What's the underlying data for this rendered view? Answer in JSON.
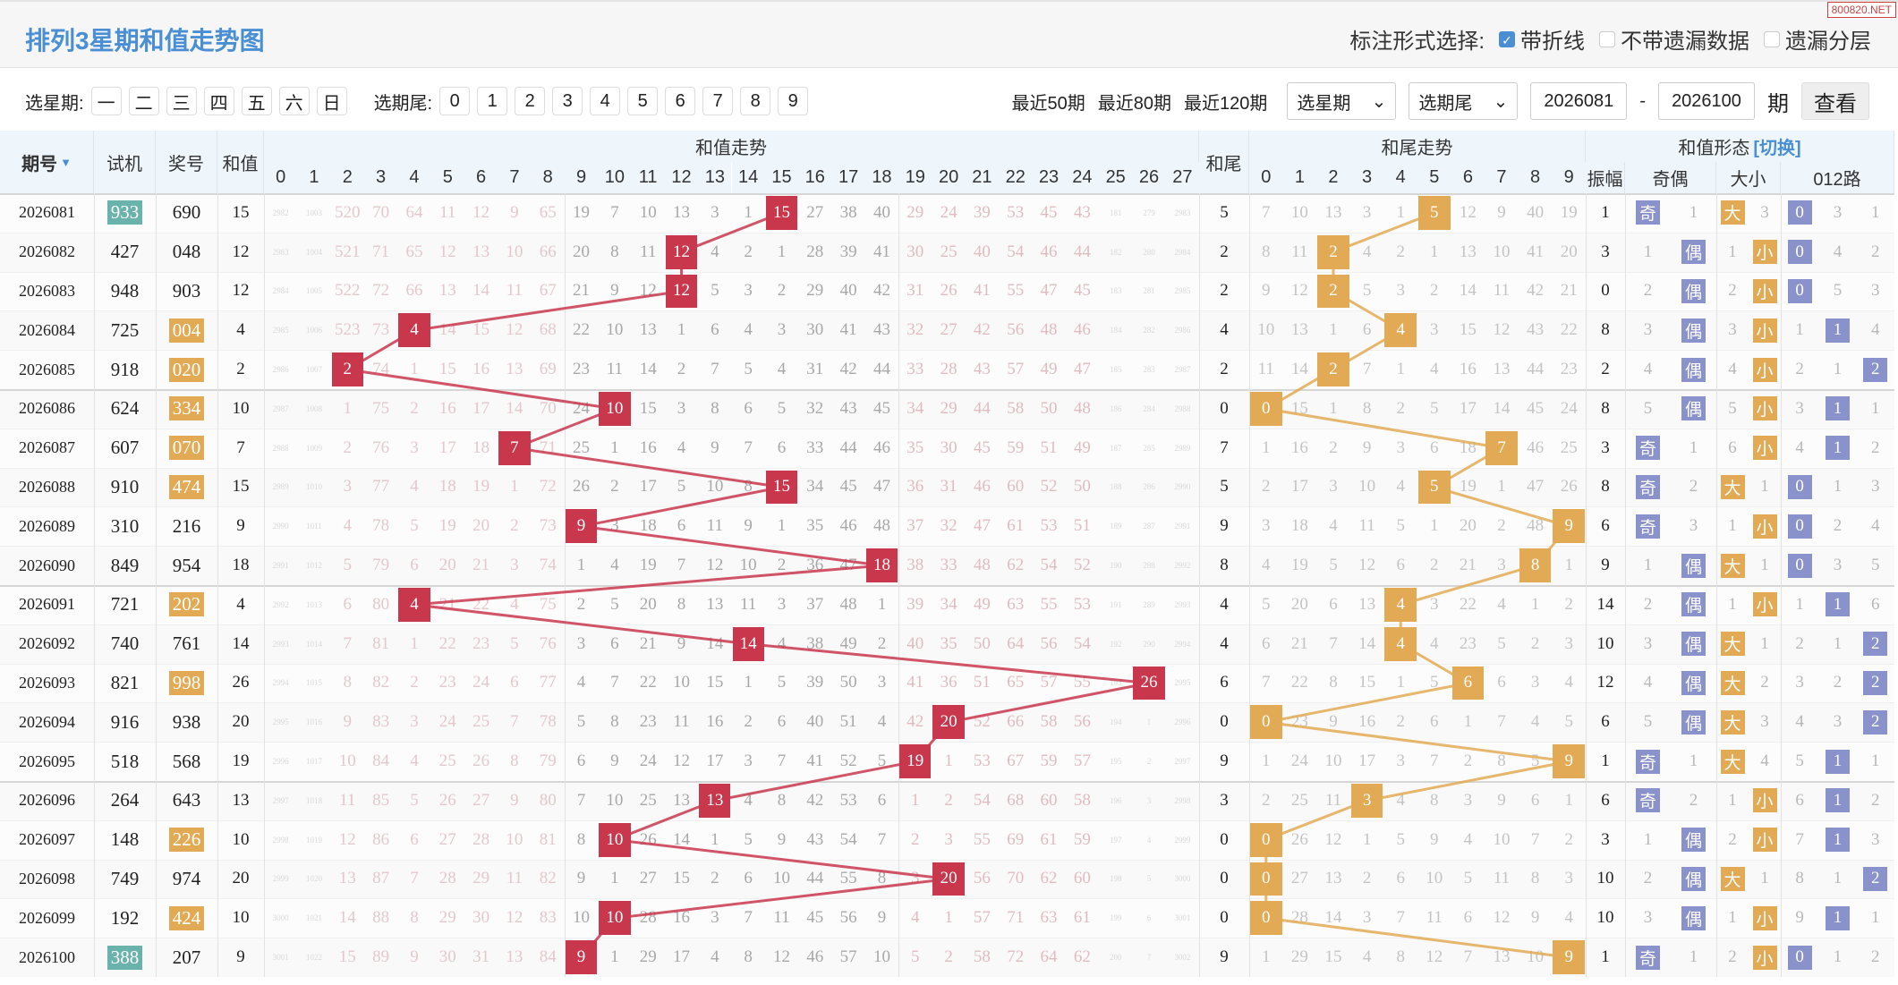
{
  "header": {
    "title": "排列3星期和值走势图",
    "mark_label": "标注形式选择:",
    "options": [
      {
        "label": "带折线",
        "checked": true
      },
      {
        "label": "不带遗漏数据",
        "checked": false
      },
      {
        "label": "遗漏分层",
        "checked": false
      }
    ],
    "watermark": "800820.NET"
  },
  "filter": {
    "week_label": "选星期:",
    "weekdays": [
      "一",
      "二",
      "三",
      "四",
      "五",
      "六",
      "日"
    ],
    "tail_label": "选期尾:",
    "tails": [
      "0",
      "1",
      "2",
      "3",
      "4",
      "5",
      "6",
      "7",
      "8",
      "9"
    ],
    "recent": [
      "最近50期",
      "最近80期",
      "最近120期"
    ],
    "week_select": "选星期",
    "tail_select": "选期尾",
    "from": "2026081",
    "dash": "-",
    "to": "2026100",
    "unit": "期",
    "view_button": "查看"
  },
  "columns": {
    "issue": "期号",
    "trial": "试机",
    "prize": "奖号",
    "sum": "和值",
    "sum_trend": "和值走势",
    "sum_digits": [
      "0",
      "1",
      "2",
      "3",
      "4",
      "5",
      "6",
      "7",
      "8",
      "9",
      "10",
      "11",
      "12",
      "13",
      "14",
      "15",
      "16",
      "17",
      "18",
      "19",
      "20",
      "21",
      "22",
      "23",
      "24",
      "25",
      "26",
      "27"
    ],
    "tail": "和尾",
    "tail_trend": "和尾走势",
    "tail_digits": [
      "0",
      "1",
      "2",
      "3",
      "4",
      "5",
      "6",
      "7",
      "8",
      "9"
    ],
    "form": "和值形态",
    "switch": "[切换]",
    "amp": "振幅",
    "oe": "奇偶",
    "bs": "大小",
    "r012": "012路"
  },
  "colors": {
    "title": "#4a8fd4",
    "sum_hit": "#c9374d",
    "tail_hit": "#e3aa55",
    "badge_blue": "#8a92cb",
    "trial_hl": "#6ab3ad",
    "prize_hl": "#e3aa55"
  },
  "rows": [
    {
      "issue": "2026081",
      "trial": "933",
      "trial_hl": true,
      "prize": "690",
      "prize_hl": false,
      "sum": 15,
      "sum_omit": [
        2982,
        1003,
        520,
        70,
        64,
        11,
        12,
        9,
        65,
        19,
        7,
        10,
        13,
        3,
        1,
        null,
        27,
        38,
        40,
        29,
        24,
        39,
        53,
        45,
        43,
        181,
        279,
        2983
      ],
      "tail": 5,
      "tail_omit": [
        7,
        10,
        13,
        3,
        1,
        null,
        12,
        9,
        40,
        19
      ],
      "amp": 1,
      "oe": [
        "奇",
        1
      ],
      "bs": [
        "大",
        3
      ],
      "r012": [
        0,
        3,
        1
      ]
    },
    {
      "issue": "2026082",
      "trial": "427",
      "trial_hl": false,
      "prize": "048",
      "prize_hl": false,
      "sum": 12,
      "sum_omit": [
        2983,
        1004,
        521,
        71,
        65,
        12,
        13,
        10,
        66,
        20,
        8,
        11,
        null,
        4,
        2,
        1,
        28,
        39,
        41,
        30,
        25,
        40,
        54,
        46,
        44,
        182,
        280,
        2984
      ],
      "tail": 2,
      "tail_omit": [
        8,
        11,
        null,
        4,
        2,
        1,
        13,
        10,
        41,
        20
      ],
      "amp": 3,
      "oe": [
        1,
        "偶"
      ],
      "bs": [
        1,
        "小"
      ],
      "r012": [
        0,
        4,
        2
      ]
    },
    {
      "issue": "2026083",
      "trial": "948",
      "trial_hl": false,
      "prize": "903",
      "prize_hl": false,
      "sum": 12,
      "sum_omit": [
        2984,
        1005,
        522,
        72,
        66,
        13,
        14,
        11,
        67,
        21,
        9,
        12,
        null,
        5,
        3,
        2,
        29,
        40,
        42,
        31,
        26,
        41,
        55,
        47,
        45,
        183,
        281,
        2985
      ],
      "tail": 2,
      "tail_omit": [
        9,
        12,
        null,
        5,
        3,
        2,
        14,
        11,
        42,
        21
      ],
      "amp": 0,
      "oe": [
        2,
        "偶"
      ],
      "bs": [
        2,
        "小"
      ],
      "r012": [
        0,
        5,
        3
      ]
    },
    {
      "issue": "2026084",
      "trial": "725",
      "trial_hl": false,
      "prize": "004",
      "prize_hl": true,
      "sum": 4,
      "sum_omit": [
        2985,
        1006,
        523,
        73,
        null,
        14,
        15,
        12,
        68,
        22,
        10,
        13,
        1,
        6,
        4,
        3,
        30,
        41,
        43,
        32,
        27,
        42,
        56,
        48,
        46,
        184,
        282,
        2986
      ],
      "tail": 4,
      "tail_omit": [
        10,
        13,
        1,
        6,
        null,
        3,
        15,
        12,
        43,
        22
      ],
      "amp": 8,
      "oe": [
        3,
        "偶"
      ],
      "bs": [
        3,
        "小"
      ],
      "r012": [
        1,
        1,
        4
      ]
    },
    {
      "issue": "2026085",
      "trial": "918",
      "trial_hl": false,
      "prize": "020",
      "prize_hl": true,
      "sum": 2,
      "sum_omit": [
        2986,
        1007,
        null,
        74,
        1,
        15,
        16,
        13,
        69,
        23,
        11,
        14,
        2,
        7,
        5,
        4,
        31,
        42,
        44,
        33,
        28,
        43,
        57,
        49,
        47,
        185,
        283,
        2987
      ],
      "tail": 2,
      "tail_omit": [
        11,
        14,
        null,
        7,
        1,
        4,
        16,
        13,
        44,
        23
      ],
      "amp": 2,
      "oe": [
        4,
        "偶"
      ],
      "bs": [
        4,
        "小"
      ],
      "r012": [
        2,
        1,
        2
      ]
    },
    {
      "issue": "2026086",
      "trial": "624",
      "trial_hl": false,
      "prize": "334",
      "prize_hl": true,
      "sum": 10,
      "sum_omit": [
        2987,
        1008,
        1,
        75,
        2,
        16,
        17,
        14,
        70,
        24,
        null,
        15,
        3,
        8,
        6,
        5,
        32,
        43,
        45,
        34,
        29,
        44,
        58,
        50,
        48,
        186,
        284,
        2988
      ],
      "tail": 0,
      "tail_omit": [
        null,
        15,
        1,
        8,
        2,
        5,
        17,
        14,
        45,
        24
      ],
      "amp": 8,
      "oe": [
        5,
        "偶"
      ],
      "bs": [
        5,
        "小"
      ],
      "r012": [
        3,
        1,
        1
      ]
    },
    {
      "issue": "2026087",
      "trial": "607",
      "trial_hl": false,
      "prize": "070",
      "prize_hl": true,
      "sum": 7,
      "sum_omit": [
        2988,
        1009,
        2,
        76,
        3,
        17,
        18,
        null,
        71,
        25,
        1,
        16,
        4,
        9,
        7,
        6,
        33,
        44,
        46,
        35,
        30,
        45,
        59,
        51,
        49,
        187,
        285,
        2989
      ],
      "tail": 7,
      "tail_omit": [
        1,
        16,
        2,
        9,
        3,
        6,
        18,
        null,
        46,
        25
      ],
      "amp": 3,
      "oe": [
        "奇",
        1
      ],
      "bs": [
        6,
        "小"
      ],
      "r012": [
        4,
        1,
        2
      ]
    },
    {
      "issue": "2026088",
      "trial": "910",
      "trial_hl": false,
      "prize": "474",
      "prize_hl": true,
      "sum": 15,
      "sum_omit": [
        2989,
        1010,
        3,
        77,
        4,
        18,
        19,
        1,
        72,
        26,
        2,
        17,
        5,
        10,
        8,
        null,
        34,
        45,
        47,
        36,
        31,
        46,
        60,
        52,
        50,
        188,
        286,
        2990
      ],
      "tail": 5,
      "tail_omit": [
        2,
        17,
        3,
        10,
        4,
        null,
        19,
        1,
        47,
        26
      ],
      "amp": 8,
      "oe": [
        "奇",
        2
      ],
      "bs": [
        "大",
        1
      ],
      "r012": [
        0,
        1,
        3
      ]
    },
    {
      "issue": "2026089",
      "trial": "310",
      "trial_hl": false,
      "prize": "216",
      "prize_hl": false,
      "sum": 9,
      "sum_omit": [
        2990,
        1011,
        4,
        78,
        5,
        19,
        20,
        2,
        73,
        null,
        3,
        18,
        6,
        11,
        9,
        1,
        35,
        46,
        48,
        37,
        32,
        47,
        61,
        53,
        51,
        189,
        287,
        2991
      ],
      "tail": 9,
      "tail_omit": [
        3,
        18,
        4,
        11,
        5,
        1,
        20,
        2,
        48,
        null
      ],
      "amp": 6,
      "oe": [
        "奇",
        3
      ],
      "bs": [
        1,
        "小"
      ],
      "r012": [
        0,
        2,
        4
      ]
    },
    {
      "issue": "2026090",
      "trial": "849",
      "trial_hl": false,
      "prize": "954",
      "prize_hl": false,
      "sum": 18,
      "sum_omit": [
        2991,
        1012,
        5,
        79,
        6,
        20,
        21,
        3,
        74,
        1,
        4,
        19,
        7,
        12,
        10,
        2,
        36,
        47,
        null,
        38,
        33,
        48,
        62,
        54,
        52,
        190,
        288,
        2992
      ],
      "tail": 8,
      "tail_omit": [
        4,
        19,
        5,
        12,
        6,
        2,
        21,
        3,
        null,
        1
      ],
      "amp": 9,
      "oe": [
        1,
        "偶"
      ],
      "bs": [
        "大",
        1
      ],
      "r012": [
        0,
        3,
        5
      ]
    },
    {
      "issue": "2026091",
      "trial": "721",
      "trial_hl": false,
      "prize": "202",
      "prize_hl": true,
      "sum": 4,
      "sum_omit": [
        2992,
        1013,
        6,
        80,
        null,
        21,
        22,
        4,
        75,
        2,
        5,
        20,
        8,
        13,
        11,
        3,
        37,
        48,
        1,
        39,
        34,
        49,
        63,
        55,
        53,
        191,
        289,
        2993
      ],
      "tail": 4,
      "tail_omit": [
        5,
        20,
        6,
        13,
        null,
        3,
        22,
        4,
        1,
        2
      ],
      "amp": 14,
      "oe": [
        2,
        "偶"
      ],
      "bs": [
        1,
        "小"
      ],
      "r012": [
        1,
        1,
        6
      ]
    },
    {
      "issue": "2026092",
      "trial": "740",
      "trial_hl": false,
      "prize": "761",
      "prize_hl": false,
      "sum": 14,
      "sum_omit": [
        2993,
        1014,
        7,
        81,
        1,
        22,
        23,
        5,
        76,
        3,
        6,
        21,
        9,
        14,
        null,
        4,
        38,
        49,
        2,
        40,
        35,
        50,
        64,
        56,
        54,
        192,
        290,
        2994
      ],
      "tail": 4,
      "tail_omit": [
        6,
        21,
        7,
        14,
        null,
        4,
        23,
        5,
        2,
        3
      ],
      "amp": 10,
      "oe": [
        3,
        "偶"
      ],
      "bs": [
        "大",
        1
      ],
      "r012": [
        2,
        1,
        2
      ]
    },
    {
      "issue": "2026093",
      "trial": "821",
      "trial_hl": false,
      "prize": "998",
      "prize_hl": true,
      "sum": 26,
      "sum_omit": [
        2994,
        1015,
        8,
        82,
        2,
        23,
        24,
        6,
        77,
        4,
        7,
        22,
        10,
        15,
        1,
        5,
        39,
        50,
        3,
        41,
        36,
        51,
        65,
        57,
        55,
        193,
        null,
        2995
      ],
      "tail": 6,
      "tail_omit": [
        7,
        22,
        8,
        15,
        1,
        5,
        null,
        6,
        3,
        4
      ],
      "amp": 12,
      "oe": [
        4,
        "偶"
      ],
      "bs": [
        "大",
        2
      ],
      "r012": [
        3,
        2,
        2
      ]
    },
    {
      "issue": "2026094",
      "trial": "916",
      "trial_hl": false,
      "prize": "938",
      "prize_hl": false,
      "sum": 20,
      "sum_omit": [
        2995,
        1016,
        9,
        83,
        3,
        24,
        25,
        7,
        78,
        5,
        8,
        23,
        11,
        16,
        2,
        6,
        40,
        51,
        4,
        42,
        null,
        52,
        66,
        58,
        56,
        194,
        1,
        2996
      ],
      "tail": 0,
      "tail_omit": [
        null,
        23,
        9,
        16,
        2,
        6,
        1,
        7,
        4,
        5
      ],
      "amp": 6,
      "oe": [
        5,
        "偶"
      ],
      "bs": [
        "大",
        3
      ],
      "r012": [
        4,
        3,
        2
      ]
    },
    {
      "issue": "2026095",
      "trial": "518",
      "trial_hl": false,
      "prize": "568",
      "prize_hl": false,
      "sum": 19,
      "sum_omit": [
        2996,
        1017,
        10,
        84,
        4,
        25,
        26,
        8,
        79,
        6,
        9,
        24,
        12,
        17,
        3,
        7,
        41,
        52,
        5,
        null,
        1,
        53,
        67,
        59,
        57,
        195,
        2,
        2997
      ],
      "tail": 9,
      "tail_omit": [
        1,
        24,
        10,
        17,
        3,
        7,
        2,
        8,
        5,
        null
      ],
      "amp": 1,
      "oe": [
        "奇",
        1
      ],
      "bs": [
        "大",
        4
      ],
      "r012": [
        5,
        1,
        1
      ]
    },
    {
      "issue": "2026096",
      "trial": "264",
      "trial_hl": false,
      "prize": "643",
      "prize_hl": false,
      "sum": 13,
      "sum_omit": [
        2997,
        1018,
        11,
        85,
        5,
        26,
        27,
        9,
        80,
        7,
        10,
        25,
        13,
        null,
        4,
        8,
        42,
        53,
        6,
        1,
        2,
        54,
        68,
        60,
        58,
        196,
        3,
        2998
      ],
      "tail": 3,
      "tail_omit": [
        2,
        25,
        11,
        null,
        4,
        8,
        3,
        9,
        6,
        1
      ],
      "amp": 6,
      "oe": [
        "奇",
        2
      ],
      "bs": [
        1,
        "小"
      ],
      "r012": [
        6,
        1,
        2
      ]
    },
    {
      "issue": "2026097",
      "trial": "148",
      "trial_hl": false,
      "prize": "226",
      "prize_hl": true,
      "sum": 10,
      "sum_omit": [
        2998,
        1019,
        12,
        86,
        6,
        27,
        28,
        10,
        81,
        8,
        null,
        26,
        14,
        1,
        5,
        9,
        43,
        54,
        7,
        2,
        3,
        55,
        69,
        61,
        59,
        197,
        4,
        2999
      ],
      "tail": 0,
      "tail_omit": [
        null,
        26,
        12,
        1,
        5,
        9,
        4,
        10,
        7,
        2
      ],
      "amp": 3,
      "oe": [
        1,
        "偶"
      ],
      "bs": [
        2,
        "小"
      ],
      "r012": [
        7,
        1,
        3
      ]
    },
    {
      "issue": "2026098",
      "trial": "749",
      "trial_hl": false,
      "prize": "974",
      "prize_hl": false,
      "sum": 20,
      "sum_omit": [
        2999,
        1020,
        13,
        87,
        7,
        28,
        29,
        11,
        82,
        9,
        1,
        27,
        15,
        2,
        6,
        10,
        44,
        55,
        8,
        3,
        null,
        56,
        70,
        62,
        60,
        198,
        5,
        3000
      ],
      "tail": 0,
      "tail_omit": [
        null,
        27,
        13,
        2,
        6,
        10,
        5,
        11,
        8,
        3
      ],
      "amp": 10,
      "oe": [
        2,
        "偶"
      ],
      "bs": [
        "大",
        1
      ],
      "r012": [
        8,
        1,
        2
      ]
    },
    {
      "issue": "2026099",
      "trial": "192",
      "trial_hl": false,
      "prize": "424",
      "prize_hl": true,
      "sum": 10,
      "sum_omit": [
        3000,
        1021,
        14,
        88,
        8,
        29,
        30,
        12,
        83,
        10,
        null,
        28,
        16,
        3,
        7,
        11,
        45,
        56,
        9,
        4,
        1,
        57,
        71,
        63,
        61,
        199,
        6,
        3001
      ],
      "tail": 0,
      "tail_omit": [
        null,
        28,
        14,
        3,
        7,
        11,
        6,
        12,
        9,
        4
      ],
      "amp": 10,
      "oe": [
        3,
        "偶"
      ],
      "bs": [
        1,
        "小"
      ],
      "r012": [
        9,
        1,
        1
      ]
    },
    {
      "issue": "2026100",
      "trial": "388",
      "trial_hl": true,
      "prize": "207",
      "prize_hl": false,
      "sum": 9,
      "sum_omit": [
        3001,
        1022,
        15,
        89,
        9,
        30,
        31,
        13,
        84,
        null,
        1,
        29,
        17,
        4,
        8,
        12,
        46,
        57,
        10,
        5,
        2,
        58,
        72,
        64,
        62,
        200,
        7,
        3002
      ],
      "tail": 9,
      "tail_omit": [
        1,
        29,
        15,
        4,
        8,
        12,
        7,
        13,
        10,
        null
      ],
      "amp": 1,
      "oe": [
        "奇",
        1
      ],
      "bs": [
        2,
        "小"
      ],
      "r012": [
        0,
        1,
        2
      ]
    }
  ]
}
